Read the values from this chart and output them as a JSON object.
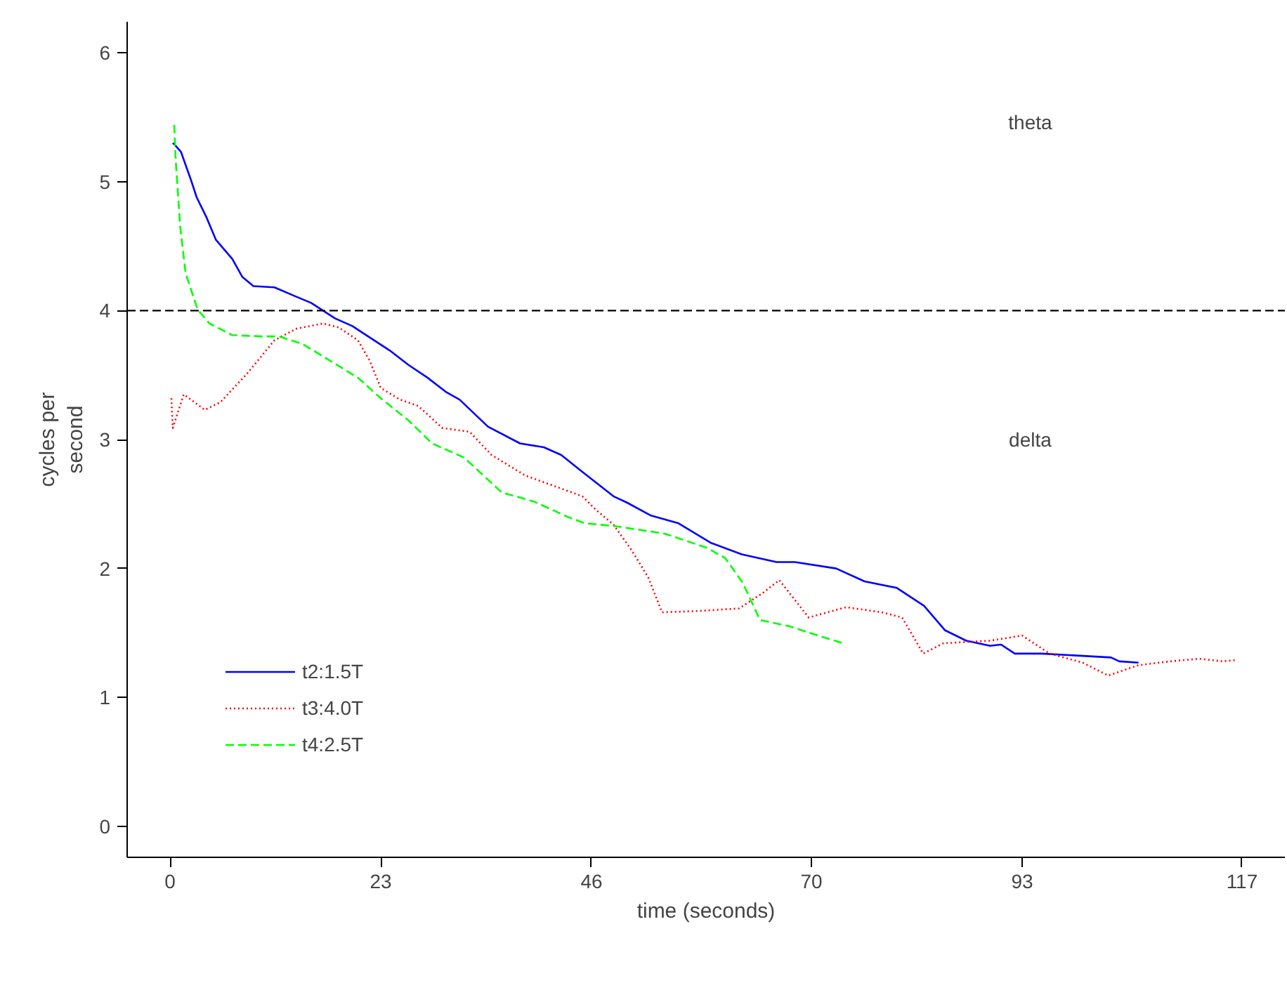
{
  "chart_data": {
    "type": "line",
    "xlabel": "time (seconds)",
    "ylabel": "cycles per\nsecond",
    "xlim": [
      -4.68,
      121.68
    ],
    "ylim": [
      -0.24,
      6.24
    ],
    "xticks": [
      0,
      23,
      46,
      70,
      93,
      117
    ],
    "yticks": [
      0,
      1,
      2,
      3,
      4,
      5,
      6
    ],
    "grid": false,
    "legend": "bottom left",
    "marker": "none",
    "ref_lines": [
      {
        "axis": "y",
        "value": 4,
        "color": "#000000",
        "line_style": "dashed"
      }
    ],
    "annotations": [
      "theta",
      "delta"
    ],
    "series": [
      {
        "name": "t2:1.5T",
        "color": "#0000ff",
        "line_style": "solid",
        "x": [
          0.3,
          0.46,
          1.2,
          2.3,
          2.9,
          4.0,
          5.0,
          6.8,
          7.9,
          9.1,
          11.4,
          13.7,
          15.4,
          18.0,
          19.9,
          24.0,
          26.0,
          28.1,
          30.1,
          31.6,
          34.7,
          38.2,
          40.8,
          42.7,
          45.0,
          48.4,
          49.9,
          52.5,
          55.5,
          59.0,
          62.4,
          66.2,
          68.2,
          72.7,
          75.8,
          79.3,
          82.3,
          84.6,
          86.9,
          89.5,
          90.7,
          92.2,
          95.1,
          102.7,
          103.6,
          105.7
        ],
        "values": [
          5.3,
          5.29,
          5.23,
          5.01,
          4.88,
          4.72,
          4.55,
          4.4,
          4.26,
          4.19,
          4.18,
          4.11,
          4.06,
          3.94,
          3.88,
          3.69,
          3.58,
          3.48,
          3.37,
          3.31,
          3.1,
          2.97,
          2.94,
          2.88,
          2.75,
          2.56,
          2.51,
          2.41,
          2.35,
          2.2,
          2.11,
          2.05,
          2.05,
          2.0,
          1.9,
          1.85,
          1.71,
          1.52,
          1.44,
          1.4,
          1.41,
          1.34,
          1.34,
          1.31,
          1.28,
          1.27
        ]
      },
      {
        "name": "t3:4.0T",
        "color": "#ff0000",
        "line_style": "dotted",
        "x": [
          0.15,
          0.3,
          1.5,
          3.8,
          5.5,
          8.4,
          11.4,
          13.8,
          16.7,
          18.4,
          20.5,
          21.8,
          23.0,
          25.1,
          27.1,
          29.7,
          32.7,
          35.1,
          38.8,
          42.3,
          45.0,
          46.4,
          48.4,
          50.4,
          52.2,
          53.7,
          57.5,
          62.1,
          64.7,
          66.5,
          69.7,
          73.8,
          77.7,
          79.9,
          82.2,
          84.4,
          89.5,
          93.0,
          96.0,
          99.6,
          102.4,
          105.7,
          109.2,
          112.3,
          114.9,
          116.4
        ],
        "values": [
          3.32,
          3.09,
          3.35,
          3.23,
          3.29,
          3.51,
          3.77,
          3.86,
          3.9,
          3.87,
          3.77,
          3.61,
          3.4,
          3.31,
          3.26,
          3.09,
          3.06,
          2.88,
          2.72,
          2.63,
          2.56,
          2.46,
          2.34,
          2.14,
          1.93,
          1.66,
          1.67,
          1.69,
          1.81,
          1.91,
          1.62,
          1.7,
          1.66,
          1.62,
          1.34,
          1.42,
          1.44,
          1.48,
          1.34,
          1.27,
          1.17,
          1.25,
          1.28,
          1.3,
          1.28,
          1.29
        ]
      },
      {
        "name": "t4:2.5T",
        "color": "#00ff00",
        "line_style": "dashed",
        "x": [
          0.46,
          0.6,
          1.1,
          1.7,
          3.0,
          4.3,
          6.8,
          9.9,
          11.9,
          14.5,
          17.5,
          20.5,
          23.0,
          26.0,
          28.6,
          32.1,
          36.2,
          39.7,
          43.4,
          45.3,
          48.4,
          54.0,
          58.6,
          60.6,
          62.5,
          64.4,
          67.7,
          70.7,
          73.5
        ],
        "values": [
          5.44,
          5.19,
          4.66,
          4.29,
          4.01,
          3.9,
          3.81,
          3.8,
          3.8,
          3.74,
          3.61,
          3.48,
          3.32,
          3.15,
          2.97,
          2.86,
          2.59,
          2.52,
          2.4,
          2.35,
          2.33,
          2.27,
          2.16,
          2.08,
          1.89,
          1.6,
          1.55,
          1.48,
          1.42
        ]
      }
    ]
  }
}
